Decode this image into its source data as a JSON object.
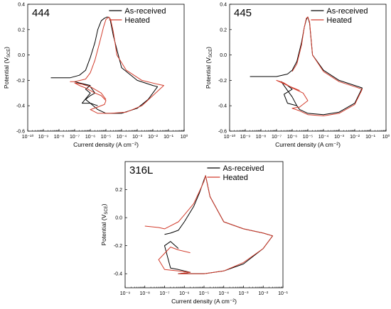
{
  "chart_data": [
    {
      "type": "line",
      "panel_label": "444",
      "xlabel": "Current density (A cm⁻²)",
      "ylabel": "Potential (V",
      "ylabel_sub": "SCE",
      "ylabel_end": ")",
      "x_scale": "log",
      "xlim": [
        1e-10,
        1
      ],
      "ylim": [
        -0.6,
        0.4
      ],
      "x_ticks": [
        -10,
        -9,
        -8,
        -7,
        -6,
        -5,
        -4,
        -3,
        -2,
        -1,
        0
      ],
      "y_ticks": [
        "-0.6",
        "-0.4",
        "-0.2",
        "0.0",
        "0.2",
        "0.4"
      ],
      "y_tick_values": [
        -0.6,
        -0.4,
        -0.2,
        0.0,
        0.2,
        0.4
      ],
      "legend_position": "top-right",
      "series": [
        {
          "name": "As-received",
          "color": "#000000",
          "x": [
            3e-09,
            1e-08,
            5e-08,
            2e-07,
            5e-07,
            1e-06,
            2e-06,
            3e-06,
            5e-06,
            8e-06,
            1.2e-05,
            1.8e-05,
            3e-05,
            0.0001,
            0.001,
            0.01,
            0.02,
            0.005,
            0.001,
            0.0001,
            1e-05,
            3e-06,
            1e-06,
            3e-07,
            1e-06,
            5e-07,
            1e-06,
            2e-07,
            1e-07,
            1e-06,
            2e-06,
            1e-06,
            5e-07,
            1e-06,
            3e-06
          ],
          "y": [
            -0.18,
            -0.18,
            -0.18,
            -0.16,
            -0.12,
            -0.02,
            0.1,
            0.2,
            0.27,
            0.29,
            0.3,
            0.29,
            0.15,
            -0.1,
            -0.2,
            -0.24,
            -0.25,
            -0.35,
            -0.42,
            -0.46,
            -0.46,
            -0.43,
            -0.38,
            -0.38,
            -0.3,
            -0.27,
            -0.24,
            -0.22,
            -0.21,
            -0.25,
            -0.3,
            -0.32,
            -0.35,
            -0.38,
            -0.4
          ]
        },
        {
          "name": "Heated",
          "color": "#d23c2c",
          "x": [
            5e-08,
            1e-07,
            5e-07,
            1e-06,
            2e-06,
            4e-06,
            7e-06,
            1e-05,
            1.5e-05,
            2e-05,
            3e-05,
            5e-05,
            0.0002,
            0.002,
            0.02,
            0.05,
            0.01,
            0.002,
            0.0002,
            2e-05,
            3e-06,
            1e-06,
            3e-06,
            8e-06,
            1e-05,
            5e-06,
            2e-06,
            1e-06,
            5e-07,
            2e-07,
            1e-07,
            3e-07,
            1e-06,
            5e-06,
            1e-05
          ],
          "y": [
            -0.21,
            -0.21,
            -0.19,
            -0.14,
            -0.04,
            0.1,
            0.22,
            0.28,
            0.3,
            0.28,
            0.18,
            0.0,
            -0.12,
            -0.2,
            -0.23,
            -0.24,
            -0.32,
            -0.4,
            -0.45,
            -0.46,
            -0.46,
            -0.43,
            -0.41,
            -0.39,
            -0.36,
            -0.32,
            -0.3,
            -0.28,
            -0.26,
            -0.24,
            -0.22,
            -0.23,
            -0.25,
            -0.3,
            -0.35
          ]
        }
      ]
    },
    {
      "type": "line",
      "panel_label": "445",
      "xlabel": "Current density (A cm⁻²)",
      "ylabel": "Potential (V",
      "ylabel_sub": "SCE",
      "ylabel_end": ")",
      "x_scale": "log",
      "xlim": [
        1e-10,
        1
      ],
      "ylim": [
        -0.6,
        0.4
      ],
      "x_ticks": [
        -10,
        -9,
        -8,
        -7,
        -6,
        -5,
        -4,
        -3,
        -2,
        -1,
        0
      ],
      "y_ticks": [
        "-0.6",
        "-0.4",
        "-0.2",
        "0.0",
        "0.2",
        "0.4"
      ],
      "y_tick_values": [
        -0.6,
        -0.4,
        -0.2,
        0.0,
        0.2,
        0.4
      ],
      "legend_position": "top-right",
      "series": [
        {
          "name": "As-received",
          "color": "#000000",
          "x": [
            2e-09,
            1e-08,
            1e-07,
            5e-07,
            1e-06,
            2e-06,
            4e-06,
            6e-06,
            8e-06,
            1e-05,
            1.3e-05,
            2e-05,
            0.0001,
            0.001,
            0.01,
            0.03,
            0.01,
            0.001,
            0.0001,
            1e-05,
            3e-06,
            2e-06,
            1e-06,
            5e-07,
            3e-07,
            1e-06,
            5e-07,
            2e-07,
            5e-07,
            1e-06,
            2e-06
          ],
          "y": [
            -0.17,
            -0.17,
            -0.17,
            -0.15,
            -0.12,
            -0.05,
            0.1,
            0.22,
            0.28,
            0.3,
            0.25,
            0.0,
            -0.12,
            -0.2,
            -0.24,
            -0.26,
            -0.38,
            -0.45,
            -0.47,
            -0.46,
            -0.43,
            -0.4,
            -0.39,
            -0.38,
            -0.31,
            -0.27,
            -0.24,
            -0.21,
            -0.28,
            -0.33,
            -0.4
          ]
        },
        {
          "name": "Heated",
          "color": "#d23c2c",
          "x": [
            1e-06,
            2e-06,
            4e-06,
            6e-06,
            8e-06,
            1e-05,
            1.3e-05,
            2e-05,
            0.0001,
            0.001,
            0.01,
            0.03,
            0.01,
            0.001,
            0.0001,
            1e-05,
            3e-06,
            1e-06,
            3e-06,
            1e-05,
            5e-06,
            1e-06,
            3e-07,
            1e-07,
            5e-07,
            3e-06
          ],
          "y": [
            -0.13,
            -0.07,
            0.08,
            0.22,
            0.29,
            0.3,
            0.26,
            0.0,
            -0.13,
            -0.21,
            -0.25,
            -0.27,
            -0.39,
            -0.46,
            -0.48,
            -0.47,
            -0.44,
            -0.42,
            -0.41,
            -0.36,
            -0.3,
            -0.26,
            -0.22,
            -0.2,
            -0.24,
            -0.28
          ]
        }
      ]
    },
    {
      "type": "line",
      "panel_label": "316L",
      "xlabel": "Current density (A cm⁻²)",
      "ylabel": "Potential (V",
      "ylabel_sub": "SCE",
      "ylabel_end": ")",
      "x_scale": "log",
      "xlim": [
        1e-09,
        0.1
      ],
      "ylim": [
        -0.5,
        0.4
      ],
      "x_ticks": [
        -9,
        -8,
        -7,
        -6,
        -5,
        -4,
        -3,
        -2,
        -1
      ],
      "y_ticks": [
        "-0.4",
        "-0.2",
        "0.0",
        "0.2"
      ],
      "y_tick_values": [
        -0.4,
        -0.2,
        0.0,
        0.2
      ],
      "legend_position": "top-right",
      "series": [
        {
          "name": "As-received",
          "color": "#000000",
          "x": [
            1e-07,
            2e-07,
            5e-07,
            1e-06,
            3e-06,
            6e-06,
            1e-05,
            1.2e-05,
            2e-05,
            0.0001,
            0.001,
            0.01,
            0.03,
            0.01,
            0.001,
            0.0001,
            1e-05,
            2e-06,
            5e-07,
            2e-06,
            1e-06,
            5e-07,
            2e-07,
            1e-07,
            2e-07,
            5e-07
          ],
          "y": [
            -0.12,
            -0.11,
            -0.09,
            -0.03,
            0.08,
            0.18,
            0.27,
            0.3,
            0.15,
            -0.03,
            -0.08,
            -0.11,
            -0.13,
            -0.22,
            -0.33,
            -0.38,
            -0.4,
            -0.4,
            -0.4,
            -0.39,
            -0.38,
            -0.37,
            -0.36,
            -0.2,
            -0.17,
            -0.22
          ]
        },
        {
          "name": "Heated",
          "color": "#d23c2c",
          "x": [
            1e-08,
            5e-08,
            1e-07,
            5e-07,
            1e-06,
            3e-06,
            6e-06,
            1e-05,
            1.2e-05,
            2e-05,
            0.0001,
            0.001,
            0.01,
            0.03,
            0.01,
            0.001,
            0.0001,
            1e-05,
            2e-06,
            5e-07,
            2e-06,
            5e-07,
            1e-07,
            5e-08,
            2e-07,
            5e-07,
            2e-06
          ],
          "y": [
            -0.06,
            -0.07,
            -0.08,
            -0.03,
            0.02,
            0.1,
            0.19,
            0.26,
            0.3,
            0.15,
            -0.03,
            -0.08,
            -0.11,
            -0.13,
            -0.22,
            -0.32,
            -0.38,
            -0.4,
            -0.4,
            -0.4,
            -0.39,
            -0.38,
            -0.37,
            -0.3,
            -0.21,
            -0.23,
            -0.25
          ]
        }
      ]
    }
  ]
}
